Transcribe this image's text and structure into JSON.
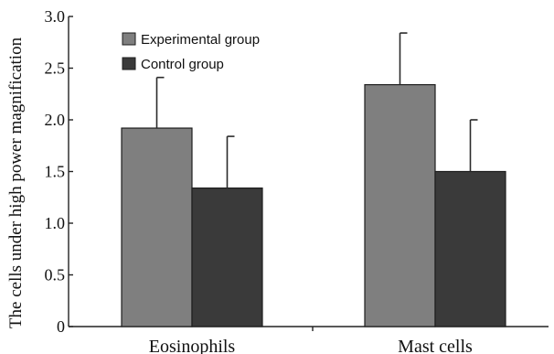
{
  "chart_data": {
    "type": "bar",
    "title": "",
    "xlabel": "",
    "ylabel": "The cells under high power magnification",
    "ylim": [
      0,
      3.0
    ],
    "yticks": [
      "0",
      "0.5",
      "1.0",
      "1.5",
      "2.0",
      "2.5",
      "3.0"
    ],
    "categories": [
      "Eosinophils",
      "Mast cells"
    ],
    "legend_position": "top-left",
    "grid": false,
    "series": [
      {
        "name": "Experimental group",
        "color": "#7f7f7f",
        "values": [
          1.92,
          2.34
        ],
        "errors": [
          0.49,
          0.5
        ]
      },
      {
        "name": "Control group",
        "color": "#3a3a3a",
        "values": [
          1.34,
          1.5
        ],
        "errors": [
          0.5,
          0.5
        ]
      }
    ]
  }
}
